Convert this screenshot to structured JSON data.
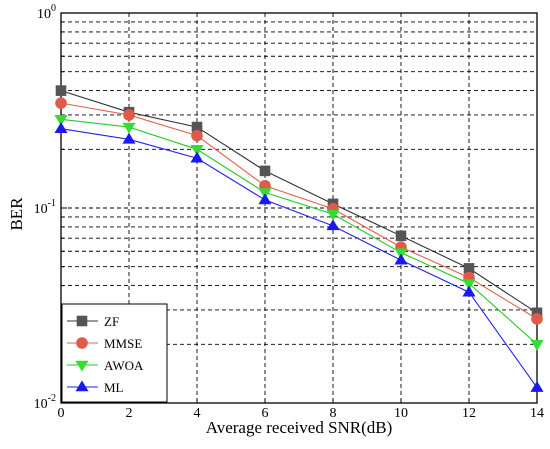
{
  "chart_data": {
    "type": "line",
    "xlabel": "Average received SNR(dB)",
    "ylabel": "BER",
    "xlim": [
      0,
      14
    ],
    "ylim": [
      0.01,
      1
    ],
    "yscale": "log",
    "grid": true,
    "legend": "bottom-left",
    "x": [
      0,
      2,
      4,
      6,
      8,
      10,
      12,
      14
    ],
    "x_ticks": [
      "0",
      "2",
      "4",
      "6",
      "8",
      "10",
      "12",
      "14"
    ],
    "y_ticks": [
      {
        "value": 1,
        "base": "10",
        "exp": "0"
      },
      {
        "value": 0.1,
        "base": "10",
        "exp": "-1"
      },
      {
        "value": 0.01,
        "base": "10",
        "exp": "-2"
      }
    ],
    "series": [
      {
        "name": "ZF",
        "marker": "square",
        "color": "#333333",
        "marker_color": "#555555",
        "values": [
          0.4,
          0.31,
          0.26,
          0.155,
          0.105,
          0.072,
          0.049,
          0.029
        ]
      },
      {
        "name": "MMSE",
        "marker": "circle",
        "color": "#e06050",
        "marker_color": "#e05a4a",
        "values": [
          0.345,
          0.3,
          0.235,
          0.13,
          0.099,
          0.063,
          0.044,
          0.027
        ]
      },
      {
        "name": "AWOA",
        "marker": "triangle-down",
        "color": "#22cc22",
        "marker_color": "#33dd33",
        "values": [
          0.285,
          0.26,
          0.2,
          0.12,
          0.093,
          0.059,
          0.041,
          0.02
        ]
      },
      {
        "name": "ML",
        "marker": "triangle-up",
        "color": "#2222ee",
        "marker_color": "#1a1aee",
        "values": [
          0.255,
          0.225,
          0.18,
          0.11,
          0.081,
          0.054,
          0.037,
          0.012
        ]
      }
    ]
  }
}
